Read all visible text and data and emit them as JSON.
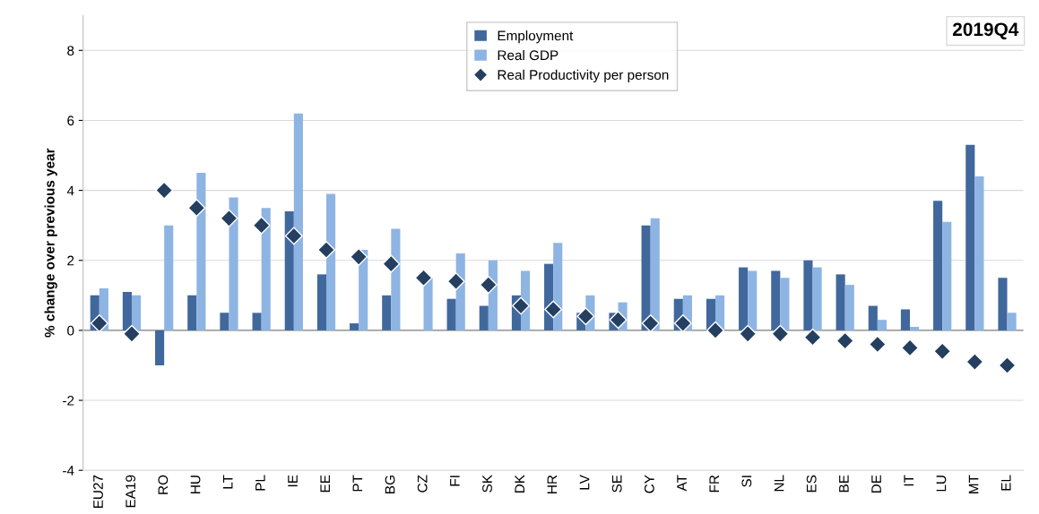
{
  "chart_data": {
    "type": "bar",
    "ylabel": "% change over previous year",
    "annotations": [
      "2019Q4"
    ],
    "categories": [
      "EU27",
      "EA19",
      "RO",
      "HU",
      "LT",
      "PL",
      "IE",
      "EE",
      "PT",
      "BG",
      "CZ",
      "FI",
      "SK",
      "DK",
      "HR",
      "LV",
      "SE",
      "CY",
      "AT",
      "FR",
      "SI",
      "NL",
      "ES",
      "BE",
      "DE",
      "IT",
      "LU",
      "MT",
      "EL"
    ],
    "series": [
      {
        "name": "Employment",
        "color": "#41689c",
        "values": [
          1.0,
          1.1,
          -1.0,
          1.0,
          0.5,
          0.5,
          3.4,
          1.6,
          0.2,
          1.0,
          0.0,
          0.9,
          0.7,
          1.0,
          1.9,
          0.5,
          0.5,
          3.0,
          0.9,
          0.9,
          1.8,
          1.7,
          2.0,
          1.6,
          0.7,
          0.6,
          3.7,
          5.3,
          1.5
        ]
      },
      {
        "name": "Real GDP",
        "color": "#8eb4e3",
        "values": [
          1.2,
          1.0,
          3.0,
          4.5,
          3.8,
          3.5,
          6.2,
          3.9,
          2.3,
          2.9,
          1.5,
          2.2,
          2.0,
          1.7,
          2.5,
          1.0,
          0.8,
          3.2,
          1.0,
          1.0,
          1.7,
          1.5,
          1.8,
          1.3,
          0.3,
          0.1,
          3.1,
          4.4,
          0.5
        ]
      },
      {
        "name": "Real Productivity per person",
        "type": "scatter",
        "marker": "diamond",
        "color": "#243f60",
        "values": [
          0.2,
          -0.1,
          4.0,
          3.5,
          3.2,
          3.0,
          2.7,
          2.3,
          2.1,
          1.9,
          1.5,
          1.4,
          1.3,
          0.7,
          0.6,
          0.4,
          0.3,
          0.2,
          0.2,
          0.0,
          -0.1,
          -0.1,
          -0.2,
          -0.3,
          -0.4,
          -0.5,
          -0.6,
          -0.9,
          -1.0
        ]
      }
    ],
    "ylim": [
      -4,
      9
    ],
    "yticks": [
      -4,
      -2,
      0,
      2,
      4,
      6,
      8
    ],
    "grid": "y",
    "legend": "top"
  }
}
